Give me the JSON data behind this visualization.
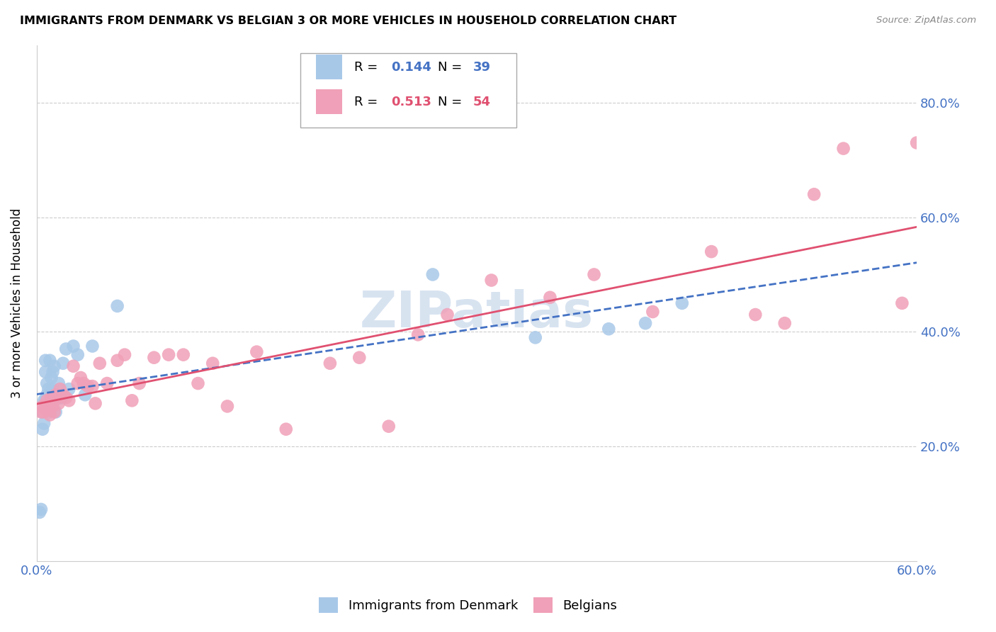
{
  "title": "IMMIGRANTS FROM DENMARK VS BELGIAN 3 OR MORE VEHICLES IN HOUSEHOLD CORRELATION CHART",
  "source": "Source: ZipAtlas.com",
  "ylabel": "3 or more Vehicles in Household",
  "watermark": "ZIPatlas",
  "xlim": [
    0.0,
    0.6
  ],
  "ylim": [
    0.0,
    0.9
  ],
  "yticks": [
    0.2,
    0.4,
    0.6,
    0.8
  ],
  "ytick_labels": [
    "20.0%",
    "40.0%",
    "60.0%",
    "80.0%"
  ],
  "xticks": [
    0.0,
    0.1,
    0.2,
    0.3,
    0.4,
    0.5,
    0.6
  ],
  "legend_r1": "0.144",
  "legend_n1": "39",
  "legend_r2": "0.513",
  "legend_n2": "54",
  "legend_label1": "Immigrants from Denmark",
  "legend_label2": "Belgians",
  "color_denmark": "#a8c8e8",
  "color_belgian": "#f0a0b8",
  "color_line_denmark": "#4472C4",
  "color_line_belgian": "#E05070",
  "color_axis_labels": "#4472C4",
  "denmark_x": [
    0.002,
    0.003,
    0.004,
    0.004,
    0.005,
    0.005,
    0.006,
    0.006,
    0.006,
    0.007,
    0.007,
    0.008,
    0.008,
    0.009,
    0.009,
    0.01,
    0.01,
    0.011,
    0.011,
    0.012,
    0.012,
    0.013,
    0.014,
    0.015,
    0.016,
    0.017,
    0.018,
    0.02,
    0.022,
    0.025,
    0.028,
    0.033,
    0.038,
    0.055,
    0.27,
    0.34,
    0.39,
    0.415,
    0.44
  ],
  "denmark_y": [
    0.085,
    0.09,
    0.26,
    0.23,
    0.24,
    0.28,
    0.28,
    0.33,
    0.35,
    0.29,
    0.31,
    0.27,
    0.3,
    0.26,
    0.35,
    0.29,
    0.32,
    0.3,
    0.33,
    0.28,
    0.34,
    0.26,
    0.29,
    0.31,
    0.285,
    0.285,
    0.345,
    0.37,
    0.3,
    0.375,
    0.36,
    0.29,
    0.375,
    0.445,
    0.5,
    0.39,
    0.405,
    0.415,
    0.45
  ],
  "belgian_x": [
    0.003,
    0.004,
    0.005,
    0.006,
    0.007,
    0.008,
    0.009,
    0.01,
    0.011,
    0.012,
    0.013,
    0.014,
    0.015,
    0.016,
    0.018,
    0.02,
    0.022,
    0.025,
    0.028,
    0.03,
    0.032,
    0.035,
    0.038,
    0.04,
    0.043,
    0.048,
    0.055,
    0.06,
    0.065,
    0.07,
    0.08,
    0.09,
    0.1,
    0.11,
    0.12,
    0.13,
    0.15,
    0.17,
    0.2,
    0.22,
    0.24,
    0.26,
    0.28,
    0.31,
    0.35,
    0.38,
    0.42,
    0.46,
    0.49,
    0.51,
    0.53,
    0.55,
    0.59,
    0.6
  ],
  "belgian_y": [
    0.26,
    0.27,
    0.26,
    0.27,
    0.28,
    0.27,
    0.255,
    0.285,
    0.27,
    0.26,
    0.29,
    0.285,
    0.275,
    0.3,
    0.29,
    0.285,
    0.28,
    0.34,
    0.31,
    0.32,
    0.31,
    0.305,
    0.305,
    0.275,
    0.345,
    0.31,
    0.35,
    0.36,
    0.28,
    0.31,
    0.355,
    0.36,
    0.36,
    0.31,
    0.345,
    0.27,
    0.365,
    0.23,
    0.345,
    0.355,
    0.235,
    0.395,
    0.43,
    0.49,
    0.46,
    0.5,
    0.435,
    0.54,
    0.43,
    0.415,
    0.64,
    0.72,
    0.45,
    0.73
  ]
}
